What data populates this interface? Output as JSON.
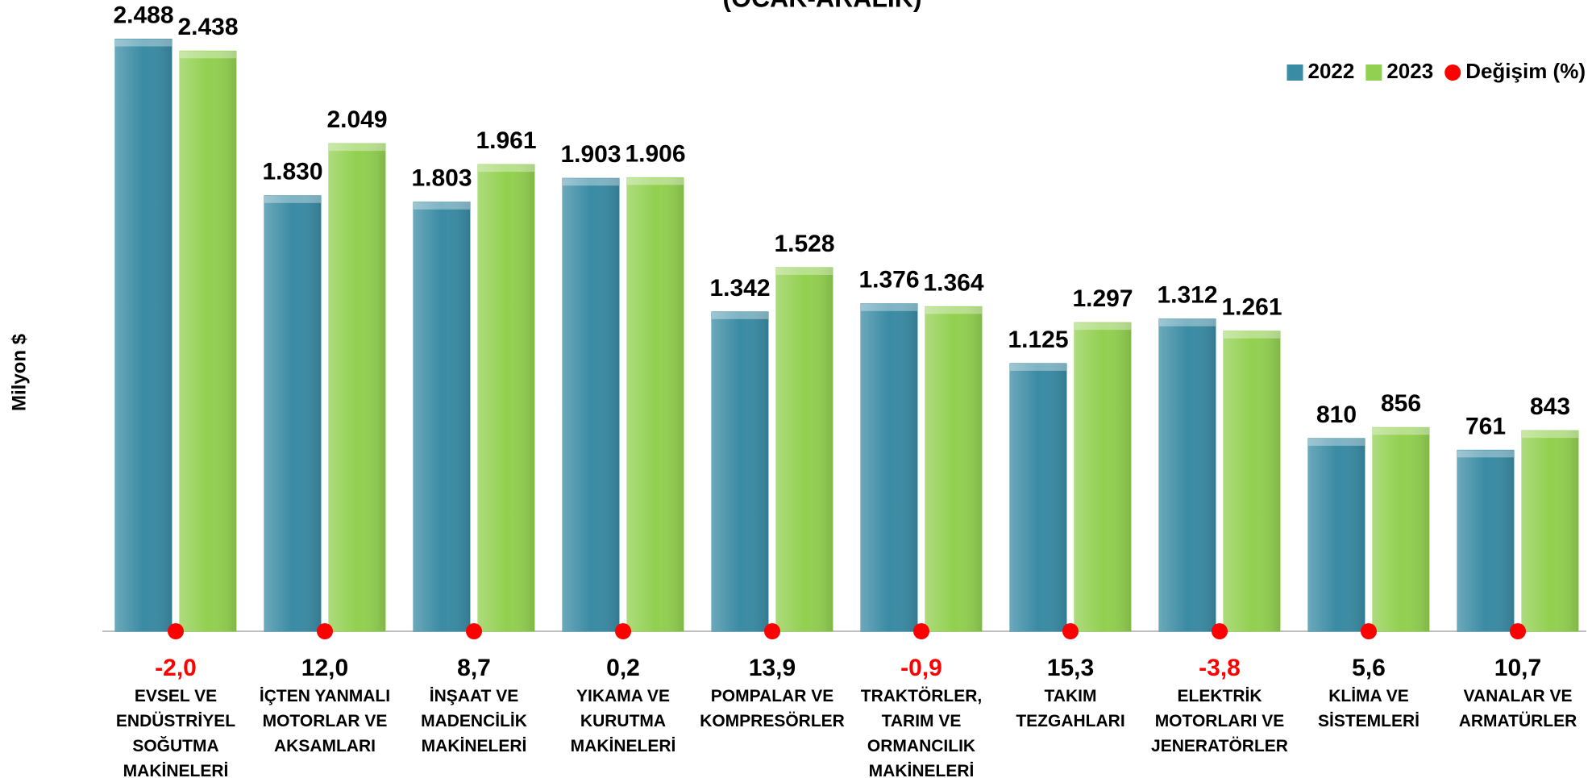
{
  "chart_data": {
    "type": "bar",
    "title": "(OCAK-ARALIK)",
    "y_label": "Milyon $",
    "categories": [
      "EVSEL VE\nENDÜSTRİYEL\nSOĞUTMA\nMAKİNELERİ",
      "İÇTEN YANMALI\nMOTORLAR VE\nAKSAMLARI",
      "İNŞAAT VE\nMADENCİLİK\nMAKİNELERİ",
      "YIKAMA VE\nKURUTMA\nMAKİNELERİ",
      "POMPALAR VE\nKOMPRESÖRLER",
      "TRAKTÖRLER,\nTARIM VE\nORMANCILIK\nMAKİNELERİ",
      "TAKIM\nTEZGAHLARI",
      "ELEKTRİK\nMOTORLARI VE\nJENERATÖRLER",
      "KLİMA VE\nSİSTEMLERİ",
      "VANALAR VE\nARMATÜRLER"
    ],
    "series": [
      {
        "name": "2022",
        "color": "#3a8ba4",
        "values": [
          2488,
          1830,
          1803,
          1903,
          1342,
          1376,
          1125,
          1312,
          810,
          761
        ],
        "value_labels": [
          "2.488",
          "1.830",
          "1.803",
          "1.903",
          "1.342",
          "1.376",
          "1.125",
          "1.312",
          "810",
          "761"
        ]
      },
      {
        "name": "2023",
        "color": "#92d050",
        "values": [
          2438,
          2049,
          1961,
          1906,
          1528,
          1364,
          1297,
          1261,
          856,
          843
        ],
        "value_labels": [
          "2.438",
          "2.049",
          "1.961",
          "1.906",
          "1.528",
          "1.364",
          "1.297",
          "1.261",
          "856",
          "843"
        ]
      }
    ],
    "change": {
      "name": "Değişim (%)",
      "color": "#ff0000",
      "values": [
        -2.0,
        12.0,
        8.7,
        0.2,
        13.9,
        -0.9,
        15.3,
        -3.8,
        5.6,
        10.7
      ],
      "value_labels": [
        "-2,0",
        "12,0",
        "8,7",
        "0,2",
        "13,9",
        "-0,9",
        "15,3",
        "-3,8",
        "5,6",
        "10,7"
      ],
      "negative_color": "#ff0000",
      "positive_color": "#000000"
    },
    "ylim": [
      0,
      2500
    ],
    "legend": "top-right"
  }
}
